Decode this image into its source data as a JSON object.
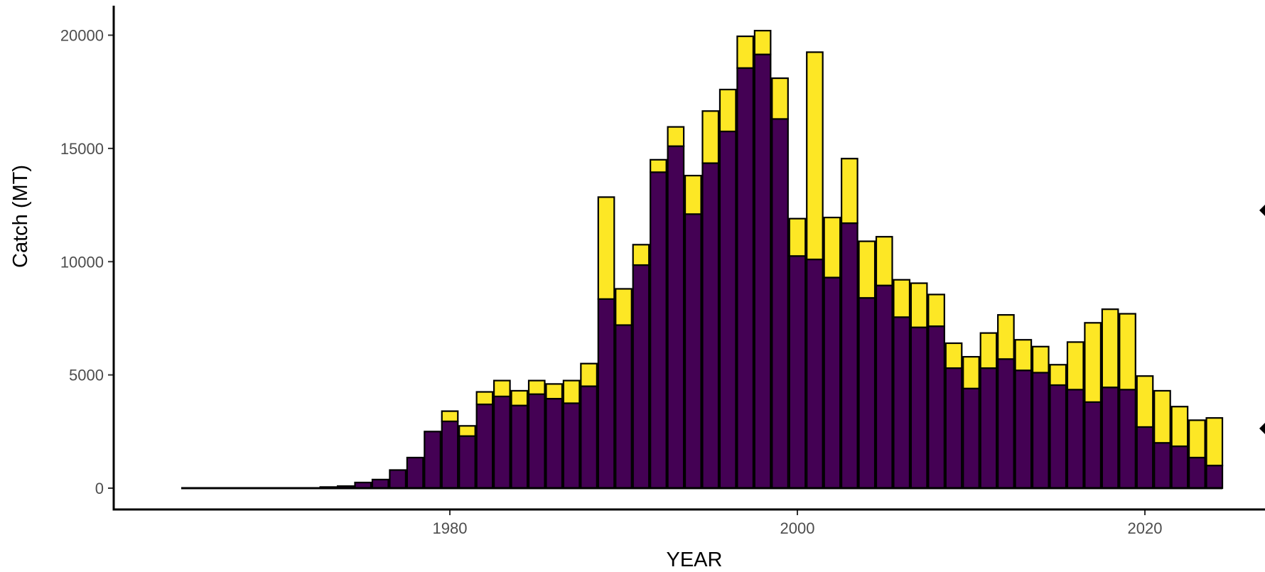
{
  "chart_data": {
    "type": "bar",
    "stacked": true,
    "xlabel": "YEAR",
    "ylabel": "Catch (MT)",
    "title": "",
    "ylim": [
      0,
      20500
    ],
    "xlim": [
      1964,
      2025
    ],
    "x_ticks": [
      1980,
      2000,
      2020
    ],
    "y_ticks": [
      0,
      5000,
      10000,
      15000,
      20000
    ],
    "grid": false,
    "legend": "right (cropped)",
    "colors": {
      "bottom": "#440154",
      "top": "#FDE725",
      "outline": "#000000"
    },
    "years": [
      1965,
      1966,
      1967,
      1968,
      1969,
      1970,
      1971,
      1972,
      1973,
      1974,
      1975,
      1976,
      1977,
      1978,
      1979,
      1980,
      1981,
      1982,
      1983,
      1984,
      1985,
      1986,
      1987,
      1988,
      1989,
      1990,
      1991,
      1992,
      1993,
      1994,
      1995,
      1996,
      1997,
      1998,
      1999,
      2000,
      2001,
      2002,
      2003,
      2004,
      2005,
      2006,
      2007,
      2008,
      2009,
      2010,
      2011,
      2012,
      2013,
      2014,
      2015,
      2016,
      2017,
      2018,
      2019,
      2020,
      2021,
      2022,
      2023,
      2024
    ],
    "series": [
      {
        "values": [
          0,
          0,
          0,
          0,
          0,
          0,
          0,
          0,
          50,
          90,
          250,
          380,
          800,
          1350,
          2500,
          2950,
          2300,
          3700,
          4050,
          3650,
          4150,
          3950,
          3750,
          4500,
          8350,
          7200,
          9850,
          13950,
          15100,
          12100,
          14350,
          15750,
          18550,
          19150,
          16300,
          10250,
          10100,
          9300,
          11700,
          8400,
          8950,
          7550,
          7100,
          7150,
          5300,
          4400,
          5300,
          5700,
          5200,
          5100,
          4550,
          4350,
          3800,
          4450,
          4350,
          2700,
          2000,
          1850,
          1350,
          1000
        ]
      },
      {
        "values": [
          0,
          0,
          0,
          0,
          0,
          0,
          0,
          0,
          0,
          0,
          0,
          0,
          0,
          0,
          0,
          450,
          450,
          550,
          700,
          650,
          600,
          650,
          1000,
          1000,
          4500,
          1600,
          900,
          550,
          850,
          1700,
          2300,
          1850,
          1400,
          1050,
          1800,
          1650,
          9150,
          2650,
          2850,
          2500,
          2150,
          1650,
          1950,
          1400,
          1100,
          1400,
          1550,
          1950,
          1350,
          1150,
          900,
          2100,
          3500,
          3450,
          3350,
          2250,
          2300,
          1750,
          1650,
          2100
        ]
      }
    ]
  }
}
